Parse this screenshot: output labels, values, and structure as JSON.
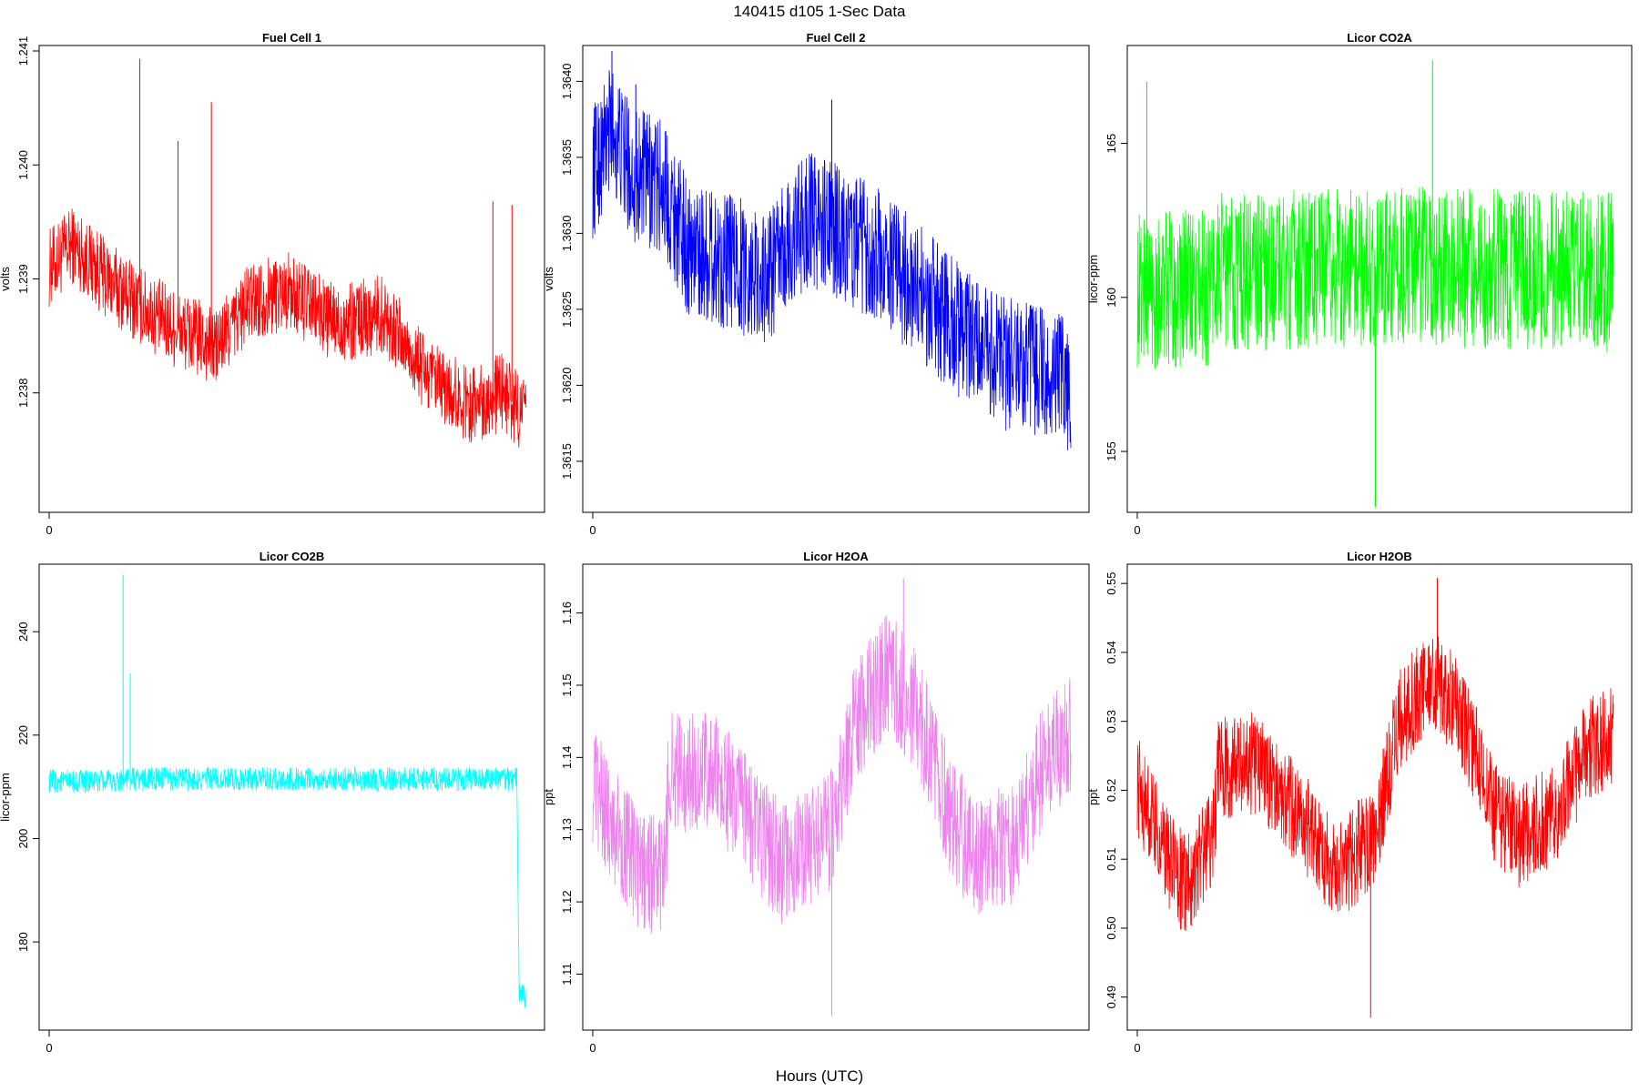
{
  "figure": {
    "title": "140415   d105   1-Sec Data",
    "xlabel": "Hours (UTC)"
  },
  "chart_data": [
    {
      "type": "line",
      "title": "Fuel Cell 1",
      "ylabel": "volts",
      "color": "#ff0000",
      "xticks": [
        "0"
      ],
      "xlim": [
        0,
        1
      ],
      "ylim": [
        1.237,
        1.241
      ],
      "yticks": [
        1.238,
        1.239,
        1.24,
        1.241
      ],
      "ytick_labels": [
        "1.238",
        "1.239",
        "1.240",
        "1.241"
      ],
      "trend_x": [
        0,
        0.05,
        0.12,
        0.18,
        0.25,
        0.35,
        0.42,
        0.5,
        0.6,
        0.7,
        0.8,
        0.88,
        0.95,
        1.0
      ],
      "trend_y": [
        1.2391,
        1.2393,
        1.239,
        1.2388,
        1.2386,
        1.2384,
        1.2388,
        1.2389,
        1.2386,
        1.2387,
        1.2381,
        1.2379,
        1.238,
        1.2378
      ],
      "noise": 0.00035,
      "spikes": [
        [
          0.19,
          1.24093
        ],
        [
          0.27,
          1.24021
        ],
        [
          0.34,
          1.24055
        ],
        [
          0.93,
          1.23968
        ],
        [
          0.97,
          1.23965
        ]
      ]
    },
    {
      "type": "line",
      "title": "Fuel Cell 2",
      "ylabel": "volts",
      "color": "#0000ff",
      "xticks": [
        "0"
      ],
      "xlim": [
        0,
        1
      ],
      "ylim": [
        1.3612,
        1.3642
      ],
      "yticks": [
        1.3615,
        1.362,
        1.3625,
        1.363,
        1.3635,
        1.364
      ],
      "ytick_labels": [
        "1.3615",
        "1.3620",
        "1.3625",
        "1.3630",
        "1.3635",
        "1.3640"
      ],
      "trend_x": [
        0,
        0.04,
        0.08,
        0.15,
        0.2,
        0.3,
        0.36,
        0.45,
        0.52,
        0.62,
        0.72,
        0.82,
        0.9,
        1.0
      ],
      "trend_y": [
        1.3634,
        1.3637,
        1.3634,
        1.3633,
        1.3629,
        1.3628,
        1.3627,
        1.3631,
        1.363,
        1.3628,
        1.3625,
        1.3622,
        1.3621,
        1.362
      ],
      "noise": 0.00045,
      "spikes": [
        [
          0.04,
          1.36427
        ],
        [
          0.09,
          1.36398
        ],
        [
          0.5,
          1.36388
        ]
      ]
    },
    {
      "type": "line",
      "title": "Licor CO2A",
      "ylabel": "licor-ppm",
      "color": "#00ff00",
      "xticks": [
        "0"
      ],
      "xlim": [
        0,
        1
      ],
      "ylim": [
        153.2,
        168.0
      ],
      "yticks": [
        155,
        160,
        165
      ],
      "ytick_labels": [
        "155",
        "160",
        "165"
      ],
      "trend_x": [
        0,
        0.15,
        0.16,
        0.5,
        0.6,
        1.0
      ],
      "trend_y": [
        160.2,
        160.3,
        160.8,
        161.0,
        161.0,
        160.8
      ],
      "noise": 2.6,
      "spikes": [
        [
          0.62,
          167.7
        ],
        [
          0.02,
          167.0
        ],
        [
          0.5,
          152.6
        ]
      ]
    },
    {
      "type": "line",
      "title": "Licor CO2B",
      "ylabel": "licor-ppm",
      "color": "#00ffff",
      "xticks": [
        "0"
      ],
      "xlim": [
        0,
        1
      ],
      "ylim": [
        164.0,
        252.0
      ],
      "yticks": [
        180,
        200,
        220,
        240
      ],
      "ytick_labels": [
        "180",
        "200",
        "220",
        "240"
      ],
      "trend_x": [
        0,
        0.14,
        0.15,
        0.98,
        0.985,
        1.0
      ],
      "trend_y": [
        211,
        211,
        211.5,
        211.5,
        170,
        169
      ],
      "noise": 2.3,
      "spikes": [
        [
          0.155,
          251
        ],
        [
          0.17,
          232
        ]
      ]
    },
    {
      "type": "line",
      "title": "Licor H2OA",
      "ylabel": "ppt",
      "color": "#ee82ee",
      "xticks": [
        "0"
      ],
      "xlim": [
        0,
        1
      ],
      "ylim": [
        1.103,
        1.166
      ],
      "yticks": [
        1.11,
        1.12,
        1.13,
        1.14,
        1.15,
        1.16
      ],
      "ytick_labels": [
        "1.11",
        "1.12",
        "1.13",
        "1.14",
        "1.15",
        "1.16"
      ],
      "trend_x": [
        0,
        0.05,
        0.1,
        0.15,
        0.16,
        0.25,
        0.32,
        0.4,
        0.5,
        0.55,
        0.62,
        0.68,
        0.75,
        0.8,
        0.88,
        0.95,
        1.0
      ],
      "trend_y": [
        1.136,
        1.13,
        1.124,
        1.124,
        1.138,
        1.138,
        1.132,
        1.125,
        1.13,
        1.145,
        1.152,
        1.146,
        1.132,
        1.126,
        1.128,
        1.14,
        1.143
      ],
      "noise": 0.0085,
      "spikes": [
        [
          0.65,
          1.1648
        ],
        [
          0.5,
          1.1042
        ]
      ]
    },
    {
      "type": "line",
      "title": "Licor H2OB",
      "ylabel": "ppt",
      "color": "#ff0000",
      "xticks": [
        "0"
      ],
      "xlim": [
        0,
        1
      ],
      "ylim": [
        0.486,
        0.552
      ],
      "yticks": [
        0.49,
        0.5,
        0.51,
        0.52,
        0.53,
        0.54,
        0.55
      ],
      "ytick_labels": [
        "0.49",
        "0.50",
        "0.51",
        "0.52",
        "0.53",
        "0.54",
        "0.55"
      ],
      "trend_x": [
        0,
        0.05,
        0.1,
        0.16,
        0.17,
        0.25,
        0.32,
        0.42,
        0.5,
        0.55,
        0.62,
        0.68,
        0.75,
        0.8,
        0.88,
        0.95,
        1.0
      ],
      "trend_y": [
        0.521,
        0.512,
        0.506,
        0.514,
        0.523,
        0.524,
        0.518,
        0.508,
        0.514,
        0.53,
        0.537,
        0.531,
        0.517,
        0.513,
        0.517,
        0.526,
        0.528
      ],
      "noise": 0.0075,
      "spikes": [
        [
          0.63,
          0.5508
        ],
        [
          0.49,
          0.487
        ]
      ]
    }
  ]
}
